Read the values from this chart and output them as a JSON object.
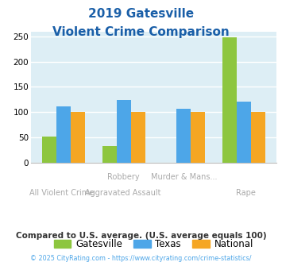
{
  "title_line1": "2019 Gatesville",
  "title_line2": "Violent Crime Comparison",
  "cat_labels_top": [
    "",
    "Robbery",
    "Murder & Mans...",
    ""
  ],
  "cat_labels_bot": [
    "All Violent Crime",
    "Aggravated Assault",
    "",
    "Rape"
  ],
  "gatesville": [
    51,
    33,
    0,
    248
  ],
  "texas": [
    112,
    124,
    107,
    121
  ],
  "national": [
    101,
    101,
    101,
    101
  ],
  "gatesville_color": "#8dc63f",
  "texas_color": "#4da6e8",
  "national_color": "#f5a623",
  "ylim": [
    0,
    260
  ],
  "yticks": [
    0,
    50,
    100,
    150,
    200,
    250
  ],
  "bg_color": "#ddeef5",
  "grid_color": "#ffffff",
  "title_color": "#1a5fa8",
  "xlabel_color": "#aaaaaa",
  "subtitle_note": "Compared to U.S. average. (U.S. average equals 100)",
  "subtitle_note_color": "#333333",
  "footer": "© 2025 CityRating.com - https://www.cityrating.com/crime-statistics/",
  "footer_color": "#4da6e8",
  "legend_labels": [
    "Gatesville",
    "Texas",
    "National"
  ]
}
